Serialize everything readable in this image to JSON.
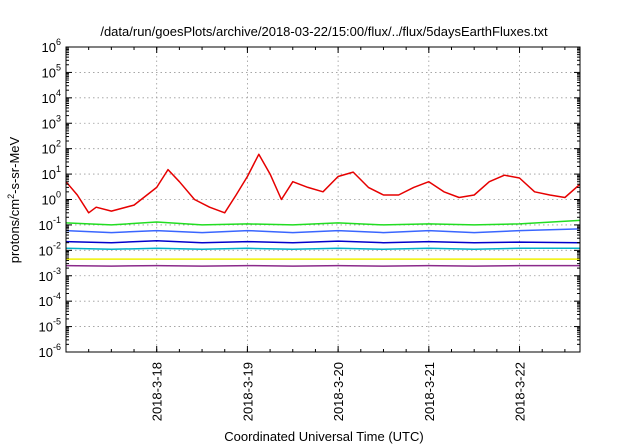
{
  "chart_data": {
    "type": "line",
    "title": "/data/run/goesPlots/archive/2018-03-22/15:00/flux/../flux/5daysEarthFluxes.txt",
    "xlabel": "Coordinated Universal Time (UTC)",
    "ylabel": "protons/cm2-s-sr-MeV",
    "ylabel_parts": {
      "before": "protons/cm",
      "sup": "2",
      "after": "-s-sr-MeV"
    },
    "yscale": "log",
    "ylim": [
      1e-06,
      1000000.0
    ],
    "xlim": [
      "2018-03-17T00:00",
      "2018-03-22T16:00"
    ],
    "grid": true,
    "legend": "none",
    "x_ticks": [
      "2018-3-18",
      "2018-3-19",
      "2018-3-20",
      "2018-3-21",
      "2018-3-22"
    ],
    "y_ticks": [
      {
        "value": 1e-06,
        "base": "10",
        "exp": "-6"
      },
      {
        "value": 1e-05,
        "base": "10",
        "exp": "-5"
      },
      {
        "value": 0.0001,
        "base": "10",
        "exp": "-4"
      },
      {
        "value": 0.001,
        "base": "10",
        "exp": "-3"
      },
      {
        "value": 0.01,
        "base": "10",
        "exp": "-2"
      },
      {
        "value": 0.1,
        "base": "10",
        "exp": "-1"
      },
      {
        "value": 1,
        "base": "10",
        "exp": "0"
      },
      {
        "value": 10,
        "base": "10",
        "exp": "1"
      },
      {
        "value": 100,
        "base": "10",
        "exp": "2"
      },
      {
        "value": 1000,
        "base": "10",
        "exp": "3"
      },
      {
        "value": 10000,
        "base": "10",
        "exp": "4"
      },
      {
        "value": 100000,
        "base": "10",
        "exp": "5"
      },
      {
        "value": 1000000,
        "base": "10",
        "exp": "6"
      }
    ],
    "series": [
      {
        "color": "#e60000",
        "x": [
          "2018-03-17T00:00",
          "2018-03-17T03:00",
          "2018-03-17T06:00",
          "2018-03-17T08:00",
          "2018-03-17T12:00",
          "2018-03-17T18:00",
          "2018-03-18T00:00",
          "2018-03-18T03:00",
          "2018-03-18T06:00",
          "2018-03-18T10:00",
          "2018-03-18T14:00",
          "2018-03-18T18:00",
          "2018-03-18T21:00",
          "2018-03-19T00:00",
          "2018-03-19T03:00",
          "2018-03-19T06:00",
          "2018-03-19T09:00",
          "2018-03-19T12:00",
          "2018-03-19T16:00",
          "2018-03-19T20:00",
          "2018-03-20T00:00",
          "2018-03-20T04:00",
          "2018-03-20T08:00",
          "2018-03-20T12:00",
          "2018-03-20T16:00",
          "2018-03-20T20:00",
          "2018-03-21T00:00",
          "2018-03-21T04:00",
          "2018-03-21T08:00",
          "2018-03-21T12:00",
          "2018-03-21T16:00",
          "2018-03-21T20:00",
          "2018-03-22T00:00",
          "2018-03-22T04:00",
          "2018-03-22T08:00",
          "2018-03-22T12:00",
          "2018-03-22T16:00"
        ],
        "values": [
          5,
          1.5,
          0.3,
          0.5,
          0.35,
          0.6,
          3,
          15,
          5,
          1,
          0.5,
          0.3,
          1.5,
          8,
          60,
          10,
          1,
          5,
          3,
          2,
          8,
          12,
          3,
          1.5,
          1.5,
          3,
          5,
          2,
          1.2,
          1.5,
          5,
          9,
          7,
          2,
          1.5,
          1.2,
          4
        ]
      },
      {
        "color": "#22dd22",
        "x": [
          "2018-03-17T00:00",
          "2018-03-17T12:00",
          "2018-03-18T00:00",
          "2018-03-18T12:00",
          "2018-03-19T00:00",
          "2018-03-19T12:00",
          "2018-03-20T00:00",
          "2018-03-20T12:00",
          "2018-03-21T00:00",
          "2018-03-21T12:00",
          "2018-03-22T00:00",
          "2018-03-22T16:00"
        ],
        "values": [
          0.12,
          0.1,
          0.13,
          0.1,
          0.11,
          0.1,
          0.12,
          0.1,
          0.11,
          0.1,
          0.11,
          0.15
        ]
      },
      {
        "color": "#3a66ff",
        "x": [
          "2018-03-17T00:00",
          "2018-03-17T12:00",
          "2018-03-18T00:00",
          "2018-03-18T12:00",
          "2018-03-19T00:00",
          "2018-03-19T12:00",
          "2018-03-20T00:00",
          "2018-03-20T12:00",
          "2018-03-21T00:00",
          "2018-03-21T12:00",
          "2018-03-22T00:00",
          "2018-03-22T16:00"
        ],
        "values": [
          0.06,
          0.05,
          0.06,
          0.05,
          0.06,
          0.05,
          0.06,
          0.05,
          0.06,
          0.05,
          0.06,
          0.07
        ]
      },
      {
        "color": "#0000cc",
        "x": [
          "2018-03-17T00:00",
          "2018-03-17T12:00",
          "2018-03-18T00:00",
          "2018-03-18T12:00",
          "2018-03-19T00:00",
          "2018-03-19T12:00",
          "2018-03-20T00:00",
          "2018-03-20T12:00",
          "2018-03-21T00:00",
          "2018-03-21T12:00",
          "2018-03-22T00:00",
          "2018-03-22T16:00"
        ],
        "values": [
          0.022,
          0.02,
          0.024,
          0.02,
          0.022,
          0.02,
          0.023,
          0.02,
          0.022,
          0.02,
          0.021,
          0.02
        ]
      },
      {
        "color": "#00b0c8",
        "x": [
          "2018-03-17T00:00",
          "2018-03-17T12:00",
          "2018-03-18T00:00",
          "2018-03-18T12:00",
          "2018-03-19T00:00",
          "2018-03-19T12:00",
          "2018-03-20T00:00",
          "2018-03-20T12:00",
          "2018-03-21T00:00",
          "2018-03-21T12:00",
          "2018-03-22T00:00",
          "2018-03-22T16:00"
        ],
        "values": [
          0.012,
          0.011,
          0.012,
          0.011,
          0.012,
          0.011,
          0.012,
          0.011,
          0.012,
          0.011,
          0.012,
          0.012
        ]
      },
      {
        "color": "#f0f000",
        "x": [
          "2018-03-17T00:00",
          "2018-03-18T00:00",
          "2018-03-19T00:00",
          "2018-03-20T00:00",
          "2018-03-21T00:00",
          "2018-03-22T00:00",
          "2018-03-22T16:00"
        ],
        "values": [
          0.0045,
          0.0045,
          0.0045,
          0.0045,
          0.0045,
          0.0045,
          0.0045
        ]
      },
      {
        "color": "#8b2a8b",
        "x": [
          "2018-03-17T00:00",
          "2018-03-17T12:00",
          "2018-03-18T00:00",
          "2018-03-18T12:00",
          "2018-03-19T00:00",
          "2018-03-19T12:00",
          "2018-03-20T00:00",
          "2018-03-20T12:00",
          "2018-03-21T00:00",
          "2018-03-21T12:00",
          "2018-03-22T00:00",
          "2018-03-22T16:00"
        ],
        "values": [
          0.0025,
          0.0024,
          0.0025,
          0.0024,
          0.0025,
          0.0024,
          0.0025,
          0.0024,
          0.0025,
          0.0024,
          0.0025,
          0.0025
        ]
      }
    ]
  }
}
